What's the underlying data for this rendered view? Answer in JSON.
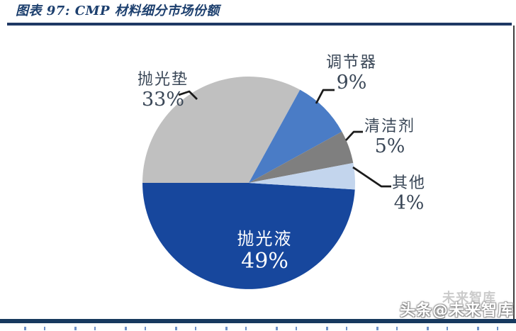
{
  "header": {
    "title": "图表 97:  CMP 材料细分市场份额"
  },
  "chart_data": {
    "type": "pie",
    "title": "CMP 材料细分市场份额",
    "legend": "none",
    "label_style": "category name + percent; outside labels with black leader lines, largest slice labeled inside in white",
    "start_angle_deg_clockwise_from_top": 93.6,
    "direction": "clockwise",
    "slices": [
      {
        "name": "抛光液",
        "value": 49,
        "pct_label": "49%",
        "color": "#17479d",
        "label_inside": true,
        "label_color": "#ffffff"
      },
      {
        "name": "抛光垫",
        "value": 33,
        "pct_label": "33%",
        "color": "#c0c0c0",
        "label_inside": false
      },
      {
        "name": "调节器",
        "value": 9,
        "pct_label": "9%",
        "color": "#4a7cc6",
        "label_inside": false
      },
      {
        "name": "清洁剂",
        "value": 5,
        "pct_label": "5%",
        "color": "#7f7f7f",
        "label_inside": false
      },
      {
        "name": "其他",
        "value": 4,
        "pct_label": "4%",
        "color": "#c3d5ed",
        "label_inside": false
      }
    ]
  },
  "colors": {
    "accent_navy": "#1f3864",
    "title_text": "#1c3f6e",
    "label_text": "#3a4757",
    "leader_line": "#1a1a1a",
    "bottom_bar": "#17395e",
    "right_border": "#3f3f3f"
  },
  "watermark": {
    "main": "头条@未来智库",
    "ghost": "未来智库"
  }
}
